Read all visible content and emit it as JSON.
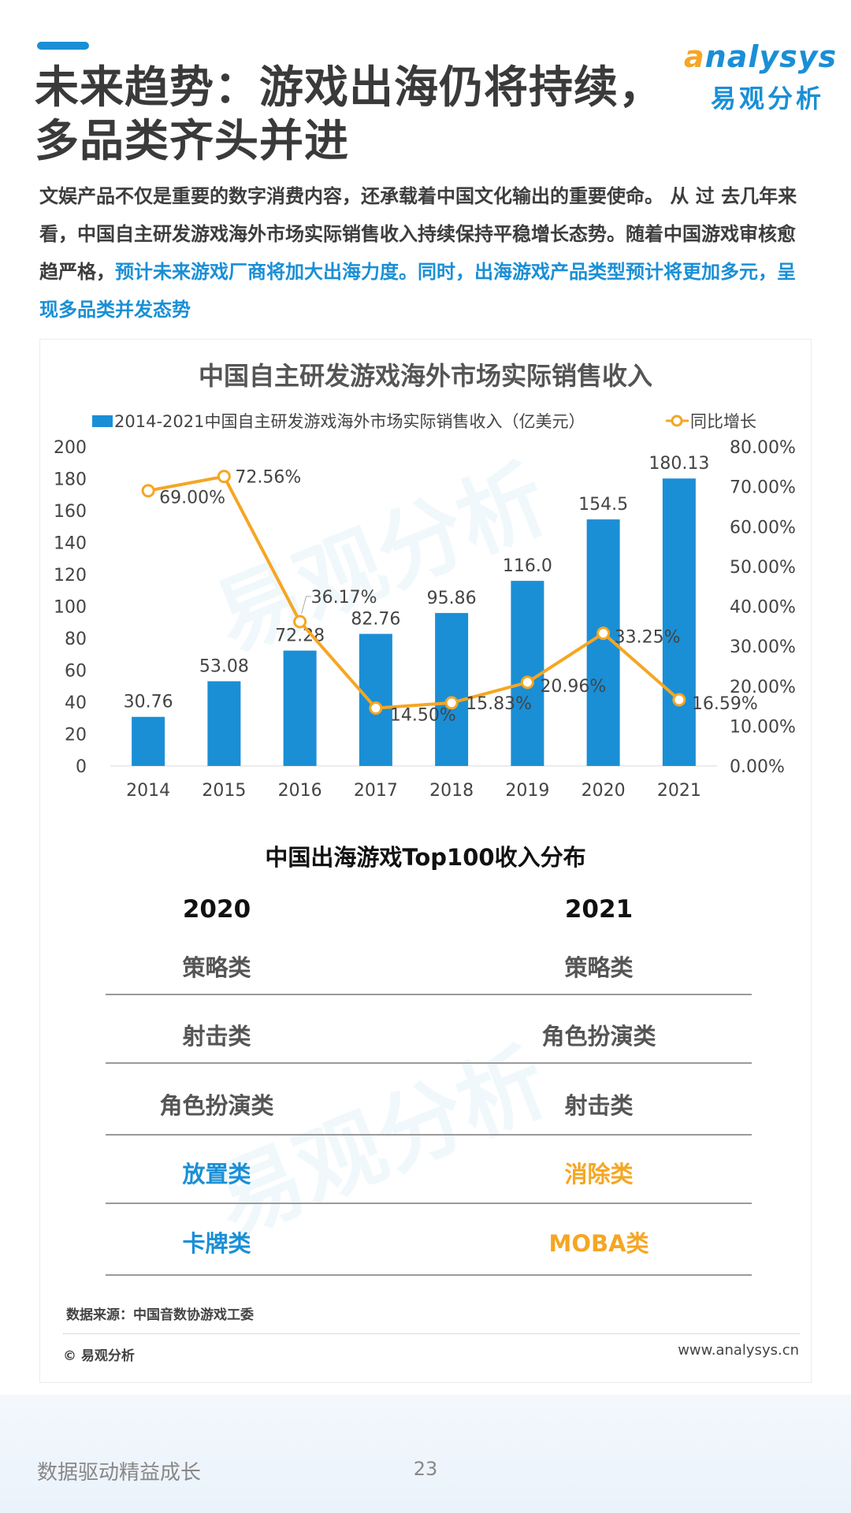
{
  "header": {
    "title_line1": "未来趋势：游戏出海仍将持续，",
    "title_line2": "多品类齐头并进",
    "logo_en_prefix": "a",
    "logo_en_rest": "nalysys",
    "logo_cn": "易观分析"
  },
  "intro": {
    "text_part1": "文娱产品不仅是重要的数字消费内容，还承载着中国文化输出的重要使命。 从 过 去几年来看，中国自主研发游戏海外市场实际销售收入持续保持平稳增长态势。随着中国游戏审核愈趋严格，",
    "text_highlight": "预计未来游戏厂商将加大出海力度。同时，出海游戏产品类型预计将更加多元，呈现多品类并发态势"
  },
  "chart_data": {
    "type": "bar+line",
    "title": "中国自主研发游戏海外市场实际销售收入",
    "categories": [
      "2014",
      "2015",
      "2016",
      "2017",
      "2018",
      "2019",
      "2020",
      "2021"
    ],
    "series": [
      {
        "name": "2014-2021中国自主研发游戏海外市场实际销售收入（亿美元）",
        "type": "bar",
        "axis": "left",
        "values": [
          30.76,
          53.08,
          72.28,
          82.76,
          95.86,
          116.0,
          154.5,
          180.13
        ],
        "labels": [
          "30.76",
          "53.08",
          "72.28",
          "82.76",
          "95.86",
          "116.0",
          "154.5",
          "180.13"
        ],
        "color": "#1a8fd6"
      },
      {
        "name": "同比增长",
        "type": "line",
        "axis": "right",
        "values": [
          69.0,
          72.56,
          36.17,
          14.5,
          15.83,
          20.96,
          33.25,
          16.59
        ],
        "labels": [
          "69.00%",
          "72.56%",
          "36.17%",
          "14.50%",
          "15.83%",
          "20.96%",
          "33.25%",
          "16.59%"
        ],
        "color": "#f5a623"
      }
    ],
    "y_left": {
      "min": 0,
      "max": 200,
      "ticks": [
        "0",
        "20",
        "40",
        "60",
        "80",
        "100",
        "120",
        "140",
        "160",
        "180",
        "200"
      ]
    },
    "y_right": {
      "min": 0,
      "max": 80,
      "ticks": [
        "0.00%",
        "10.00%",
        "20.00%",
        "30.00%",
        "40.00%",
        "50.00%",
        "60.00%",
        "70.00%",
        "80.00%"
      ]
    },
    "legend_position": "top",
    "grid": false
  },
  "top100": {
    "title": "中国出海游戏Top100收入分布",
    "col_2020": "2020",
    "col_2021": "2021",
    "rows": [
      {
        "a": "策略类",
        "b": "策略类",
        "highlight": false
      },
      {
        "a": "射击类",
        "b": "角色扮演类",
        "highlight": false
      },
      {
        "a": "角色扮演类",
        "b": "射击类",
        "highlight": false
      },
      {
        "a": "放置类",
        "b": "消除类",
        "highlight": true
      },
      {
        "a": "卡牌类",
        "b": "MOBA类",
        "highlight": true
      }
    ]
  },
  "footer": {
    "source": "数据来源：中国音数协游戏工委",
    "copyright": "© 易观分析",
    "website": "www.analysys.cn",
    "slogan": "数据驱动精益成长",
    "page_number": "23"
  },
  "colors": {
    "accent": "#1a8fd6",
    "orange": "#f5a623"
  }
}
